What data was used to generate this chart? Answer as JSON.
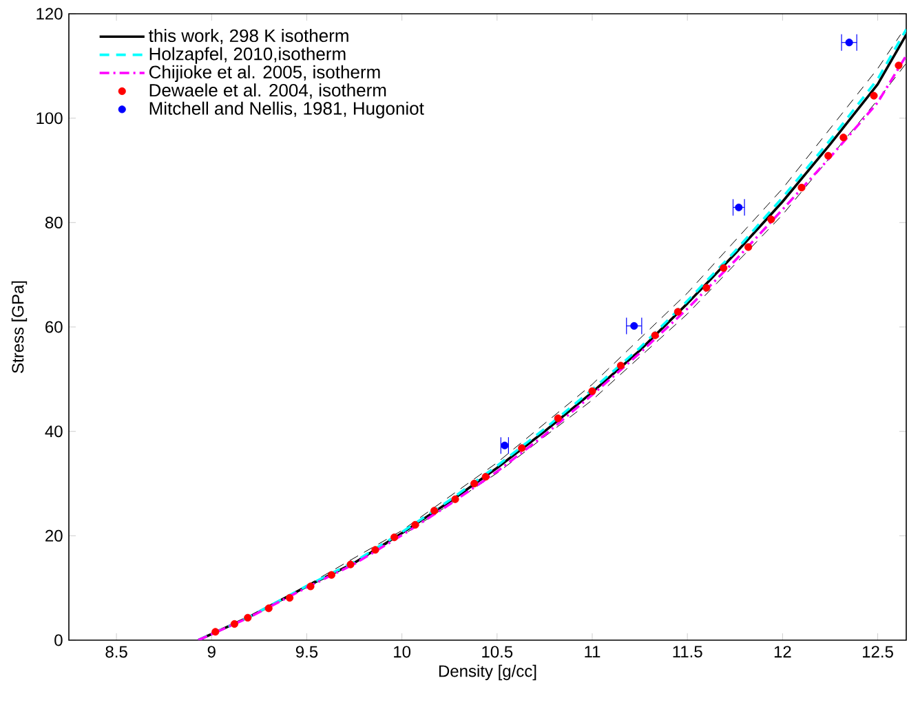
{
  "chart_data": {
    "type": "line",
    "xlabel": "Density [g/cc]",
    "ylabel": "Stress [GPa]",
    "xlim": [
      8.25,
      12.65
    ],
    "ylim": [
      0,
      120
    ],
    "xticks": [
      8.5,
      9,
      9.5,
      10,
      10.5,
      11,
      11.5,
      12,
      12.5
    ],
    "yticks": [
      0,
      20,
      40,
      60,
      80,
      100,
      120
    ],
    "grid": false,
    "legend": "top left",
    "series": [
      {
        "name": "this work, 298 K isotherm",
        "color": "#000000",
        "line_style": "solid",
        "x": [
          8.93,
          9.2,
          9.5,
          9.75,
          10,
          10.25,
          10.5,
          10.75,
          11,
          11.25,
          11.5,
          11.75,
          12,
          12.25,
          12.5,
          12.65
        ],
        "values": [
          0,
          4.5,
          10.3,
          14.8,
          20.5,
          26.5,
          33,
          40,
          47.5,
          55.5,
          64.5,
          74,
          84,
          95,
          106.5,
          116
        ]
      },
      {
        "color": "#000000",
        "line_style": "dashed",
        "x": [
          9.5,
          10,
          10.5,
          11,
          11.5,
          12,
          12.5,
          12.62
        ],
        "values": [
          10.5,
          21,
          34,
          49,
          66.5,
          86.5,
          109.5,
          116
        ]
      },
      {
        "color": "#000000",
        "line_style": "dashed",
        "x": [
          9.5,
          10,
          10.5,
          11,
          11.5,
          12,
          12.5,
          12.65
        ],
        "values": [
          10,
          20,
          32,
          46,
          62.5,
          81.5,
          103.5,
          110.5
        ]
      },
      {
        "name": "Holzapfel, 2010,isotherm",
        "color": "#00ffff",
        "line_style": "dashed",
        "x": [
          8.93,
          9.2,
          9.5,
          9.75,
          10,
          10.25,
          10.5,
          10.75,
          11,
          11.25,
          11.5,
          11.75,
          12,
          12.25,
          12.5,
          12.65
        ],
        "values": [
          0,
          4.5,
          10.4,
          15,
          20.7,
          26.8,
          33.4,
          40.5,
          48,
          56,
          65,
          74.5,
          84.8,
          95.8,
          107.5,
          117
        ]
      },
      {
        "name": "Chijioke et al. 2005, isotherm",
        "color": "#ff00ff",
        "line_style": "dashdot",
        "x": [
          8.93,
          9.2,
          9.5,
          9.75,
          10,
          10.25,
          10.5,
          10.75,
          11,
          11.25,
          11.5,
          11.75,
          12,
          12.25,
          12.5,
          12.65
        ],
        "values": [
          0,
          4.4,
          10.1,
          14.6,
          20.1,
          26,
          32.3,
          39.3,
          47,
          55,
          63.5,
          72.7,
          82.5,
          92.5,
          103,
          112
        ]
      },
      {
        "name": "Dewaele et al. 2004, isotherm",
        "type": "scatter",
        "marker": "circle",
        "color": "#ff0000",
        "x": [
          9.02,
          9.12,
          9.19,
          9.3,
          9.41,
          9.52,
          9.63,
          9.73,
          9.86,
          9.96,
          10.07,
          10.17,
          10.28,
          10.38,
          10.44,
          10.63,
          10.82,
          11.0,
          11.15,
          11.33,
          11.45,
          11.6,
          11.69,
          11.82,
          11.94,
          12.1,
          12.24,
          12.32,
          12.48,
          12.61
        ],
        "values": [
          1.6,
          3.1,
          4.3,
          6.1,
          8.1,
          10.3,
          12.5,
          14.5,
          17.3,
          19.7,
          22.1,
          24.8,
          27,
          30,
          31.3,
          36.8,
          42.5,
          47.7,
          52.6,
          58.4,
          62.9,
          67.5,
          71.3,
          75.3,
          80.6,
          86.7,
          92.8,
          96.3,
          104.3,
          110.1
        ]
      },
      {
        "name": "Mitchell and Nellis, 1981, Hugoniot",
        "type": "scatter",
        "marker": "circle",
        "color": "#0000ff",
        "x": [
          10.54,
          11.22,
          11.77,
          12.35
        ],
        "values": [
          37.3,
          60.2,
          82.9,
          114.5
        ],
        "xerrors": [
          0.02,
          0.04,
          0.03,
          0.04
        ]
      }
    ]
  }
}
